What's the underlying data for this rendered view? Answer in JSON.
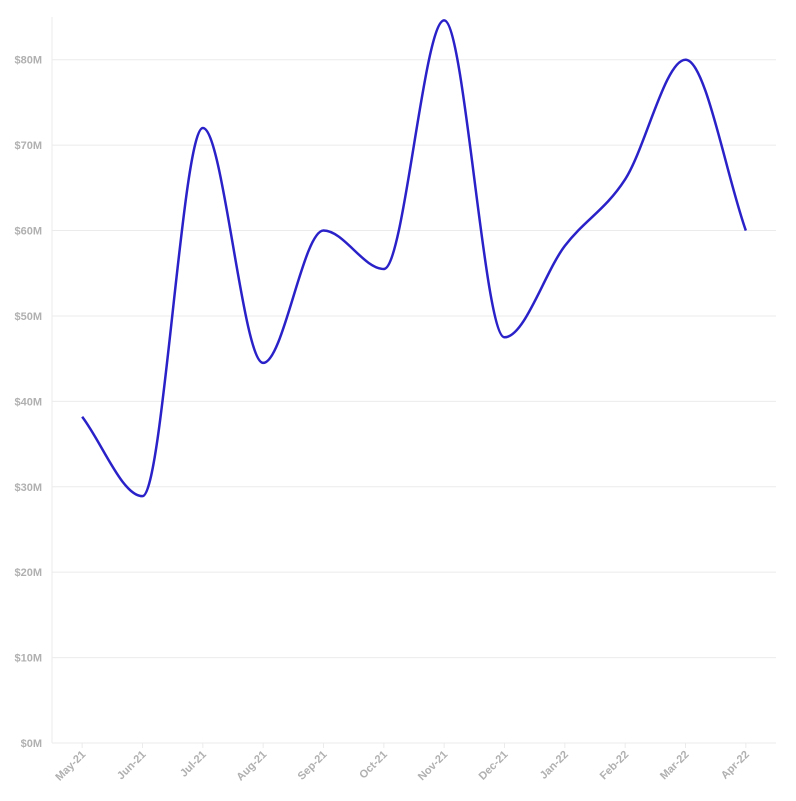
{
  "chart_data": {
    "type": "line",
    "categories": [
      "May-21",
      "Jun-21",
      "Jul-21",
      "Aug-21",
      "Sep-21",
      "Oct-21",
      "Nov-21",
      "Dec-21",
      "Jan-22",
      "Feb-22",
      "Mar-22",
      "Apr-22"
    ],
    "series": [
      {
        "color": "#2a22c8",
        "values": [
          38.2,
          28.9,
          72,
          44.5,
          60,
          55.5,
          84.6,
          47.5,
          58.2,
          66,
          80,
          60
        ]
      }
    ],
    "ylim": [
      0,
      85
    ],
    "yticks": [
      {
        "value": 0,
        "label": "$0M"
      },
      {
        "value": 10,
        "label": "$10M"
      },
      {
        "value": 20,
        "label": "$20M"
      },
      {
        "value": 30,
        "label": "$30M"
      },
      {
        "value": 40,
        "label": "$40M"
      },
      {
        "value": 50,
        "label": "$50M"
      },
      {
        "value": 60,
        "label": "$60M"
      },
      {
        "value": 70,
        "label": "$70M"
      },
      {
        "value": 80,
        "label": "$80M"
      }
    ],
    "grid": true
  }
}
